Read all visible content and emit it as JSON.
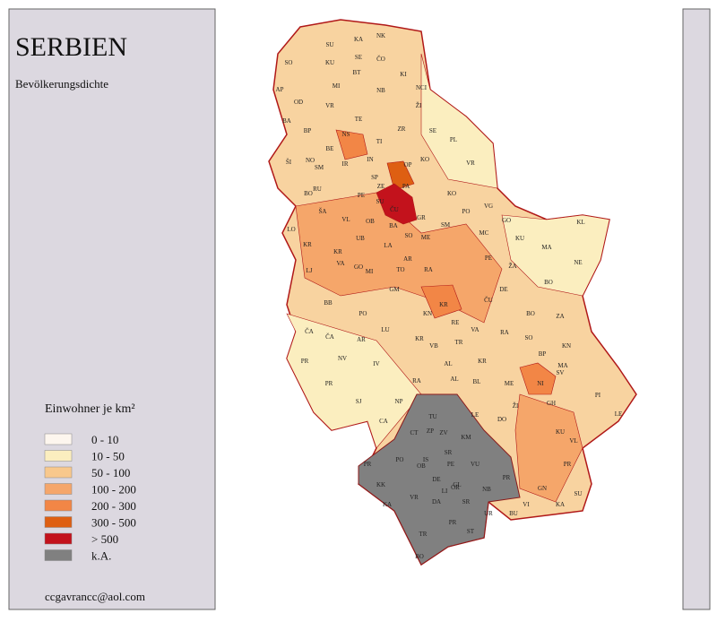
{
  "header": {
    "title": "SERBIEN",
    "subtitle": "Bevölkerungsdichte"
  },
  "legend": {
    "title": "Einwohner je km²",
    "items": [
      {
        "label": "0 - 10",
        "color": "#fdf6ee"
      },
      {
        "label": "10 - 50",
        "color": "#fbeebf"
      },
      {
        "label": "50 - 100",
        "color": "#f8c88c"
      },
      {
        "label": "100 - 200",
        "color": "#f5a66a"
      },
      {
        "label": "200 - 300",
        "color": "#f28646"
      },
      {
        "label": "300 - 500",
        "color": "#de5f12"
      },
      {
        "label": "> 500",
        "color": "#c3121c"
      },
      {
        "label": "k.A.",
        "color": "#808080"
      }
    ]
  },
  "footer": {
    "email": "ccgavrancc@aol.com"
  },
  "map": {
    "labels": [
      "SU",
      "KA",
      "NK",
      "SE",
      "ČO",
      "SO",
      "KU",
      "BT",
      "KI",
      "AP",
      "MI",
      "NB",
      "NCI",
      "OD",
      "VR",
      "ŽI",
      "BA",
      "TE",
      "ZR",
      "BP",
      "NS",
      "SE",
      "PL",
      "BE",
      "TI",
      "IR",
      "IN",
      "NO",
      "VR",
      "ŠI",
      "SM",
      "OP",
      "KO",
      "SP",
      "PA",
      "RU",
      "BO",
      "PE",
      "ZE",
      "KO",
      "ŠA",
      "SU",
      "ČU",
      "GR",
      "VG",
      "VL",
      "OB",
      "BA",
      "SM",
      "PO",
      "GO",
      "KL",
      "LO",
      "UB",
      "SO",
      "MC",
      "KU",
      "MA",
      "KR",
      "LA",
      "ME",
      "PE",
      "KR",
      "VA",
      "MI",
      "AR",
      "ŽA",
      "NE",
      "LJ",
      "TO",
      "RA",
      "DE",
      "BO",
      "GM",
      "KR",
      "ČU",
      "ZA",
      "BB",
      "ČA",
      "KN",
      "PO",
      "RE",
      "BO",
      "LU",
      "ČA",
      "SO",
      "KN",
      "AR",
      "VA",
      "RA",
      "BP",
      "PR",
      "KR",
      "VB",
      "TR",
      "MA",
      "NV",
      "IV",
      "AL",
      "KR",
      "SV",
      "PR",
      "AL",
      "ME",
      "NI",
      "PI",
      "SJ",
      "RA",
      "BL",
      "ŽI",
      "GH",
      "NP",
      "DO",
      "LE",
      "CA",
      "TU",
      "LE",
      "KU",
      "VL",
      "CT",
      "ZP",
      "ZV",
      "KM",
      "PO",
      "IS",
      "SR",
      "VU",
      "PR",
      "PE",
      "OB",
      "PR",
      "KK",
      "DE",
      "GL",
      "NB",
      "GN",
      "VR",
      "OR",
      "LI",
      "KA",
      "DA",
      "SR",
      "UR",
      "VI",
      "BU",
      "PR",
      "ST",
      "KA",
      "TR",
      "PR",
      "SU",
      "BO",
      "GO"
    ]
  }
}
